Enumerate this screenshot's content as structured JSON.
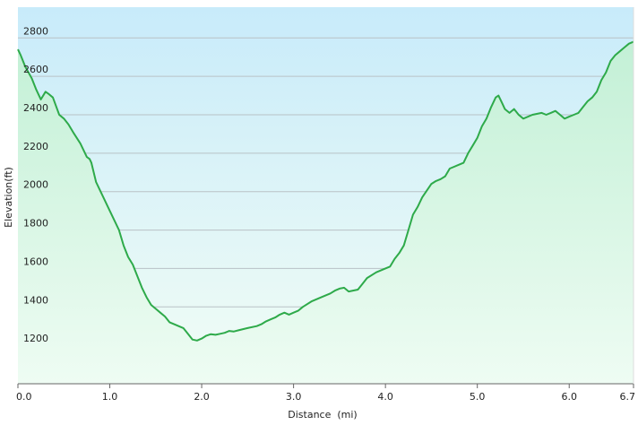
{
  "chart_data": {
    "type": "area",
    "title": "",
    "xlabel": "Distance  (mi)",
    "ylabel": "Elevation(ft)",
    "xlim": [
      0,
      6.7
    ],
    "ylim": [
      1000,
      2960
    ],
    "grid": true,
    "x_ticks": [
      0.0,
      1.0,
      2.0,
      3.0,
      4.0,
      5.0,
      6.0,
      6.7
    ],
    "x_tick_labels": [
      "0.0",
      "1.0",
      "2.0",
      "3.0",
      "4.0",
      "5.0",
      "6.0",
      "6.7"
    ],
    "y_ticks": [
      1200,
      1400,
      1600,
      1800,
      2000,
      2200,
      2400,
      2600,
      2800
    ],
    "y_tick_labels": [
      "1200",
      "1400",
      "1600",
      "1800",
      "2000",
      "2200",
      "2400",
      "2600",
      "2800"
    ],
    "series": [
      {
        "line_color": "#2eaa4a",
        "x": [
          0.0,
          0.03,
          0.08,
          0.15,
          0.2,
          0.25,
          0.3,
          0.33,
          0.38,
          0.45,
          0.5,
          0.55,
          0.6,
          0.68,
          0.75,
          0.78,
          0.8,
          0.85,
          0.9,
          1.0,
          1.05,
          1.1,
          1.15,
          1.2,
          1.25,
          1.3,
          1.35,
          1.4,
          1.45,
          1.5,
          1.55,
          1.6,
          1.65,
          1.7,
          1.8,
          1.85,
          1.9,
          1.95,
          2.0,
          2.05,
          2.1,
          2.15,
          2.2,
          2.25,
          2.3,
          2.35,
          2.4,
          2.5,
          2.6,
          2.65,
          2.7,
          2.75,
          2.8,
          2.85,
          2.9,
          2.95,
          3.0,
          3.05,
          3.1,
          3.2,
          3.3,
          3.4,
          3.45,
          3.5,
          3.55,
          3.6,
          3.7,
          3.75,
          3.8,
          3.9,
          4.0,
          4.05,
          4.1,
          4.15,
          4.2,
          4.25,
          4.3,
          4.35,
          4.4,
          4.5,
          4.55,
          4.6,
          4.65,
          4.7,
          4.8,
          4.85,
          4.9,
          4.95,
          5.0,
          5.05,
          5.1,
          5.15,
          5.2,
          5.23,
          5.27,
          5.3,
          5.35,
          5.4,
          5.45,
          5.5,
          5.6,
          5.7,
          5.75,
          5.8,
          5.85,
          5.9,
          5.95,
          6.0,
          6.05,
          6.1,
          6.15,
          6.2,
          6.25,
          6.3,
          6.35,
          6.4,
          6.45,
          6.5,
          6.55,
          6.6,
          6.65,
          6.7
        ],
        "y": [
          2740,
          2710,
          2650,
          2590,
          2530,
          2480,
          2520,
          2510,
          2490,
          2400,
          2380,
          2350,
          2310,
          2250,
          2180,
          2170,
          2150,
          2050,
          2000,
          1900,
          1850,
          1800,
          1720,
          1660,
          1620,
          1560,
          1500,
          1450,
          1410,
          1390,
          1370,
          1350,
          1320,
          1310,
          1290,
          1260,
          1230,
          1225,
          1235,
          1250,
          1258,
          1255,
          1260,
          1265,
          1275,
          1272,
          1278,
          1290,
          1300,
          1310,
          1325,
          1335,
          1345,
          1360,
          1370,
          1360,
          1370,
          1380,
          1400,
          1430,
          1450,
          1470,
          1485,
          1495,
          1500,
          1480,
          1490,
          1520,
          1550,
          1580,
          1600,
          1610,
          1650,
          1680,
          1720,
          1800,
          1880,
          1920,
          1970,
          2040,
          2055,
          2065,
          2080,
          2120,
          2140,
          2150,
          2200,
          2240,
          2280,
          2340,
          2380,
          2440,
          2490,
          2500,
          2460,
          2430,
          2410,
          2430,
          2400,
          2380,
          2400,
          2410,
          2400,
          2410,
          2420,
          2400,
          2380,
          2390,
          2400,
          2410,
          2440,
          2470,
          2490,
          2520,
          2580,
          2620,
          2680,
          2710,
          2730,
          2750,
          2770,
          2780
        ]
      }
    ]
  }
}
